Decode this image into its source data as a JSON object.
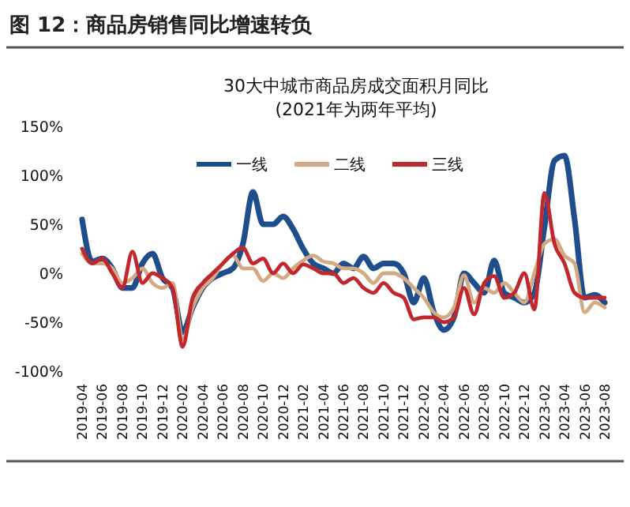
{
  "chart_data": {
    "type": "line",
    "title": "图 12：商品房销售同比增速转负",
    "subtitle": "30大中城市商品房成交面积月同比\n(2021年为两年平均)",
    "categories": [
      "2019-04",
      null,
      "2019-06",
      null,
      "2019-08",
      null,
      "2019-10",
      null,
      "2019-12",
      null,
      "2020-02",
      null,
      "2020-04",
      null,
      "2020-06",
      null,
      "2020-08",
      null,
      "2020-10",
      null,
      "2020-12",
      null,
      "2021-02",
      null,
      "2021-04",
      null,
      "2021-06",
      null,
      "2021-08",
      null,
      "2021-10",
      null,
      "2021-12",
      null,
      "2022-02",
      null,
      "2022-04",
      null,
      "2022-06",
      null,
      "2022-08",
      null,
      "2022-10",
      null,
      "2022-12",
      null,
      "2023-02",
      null,
      "2023-04",
      null,
      "2023-06",
      null,
      "2023-08"
    ],
    "series": [
      {
        "name": "一线",
        "color": "#1f4e8c",
        "values": [
          55,
          12,
          15,
          5,
          -15,
          -15,
          10,
          20,
          -5,
          -15,
          -60,
          -35,
          -15,
          -5,
          0,
          5,
          30,
          83,
          50,
          50,
          58,
          45,
          25,
          10,
          5,
          0,
          10,
          5,
          17,
          5,
          10,
          10,
          0,
          -30,
          -5,
          -40,
          -58,
          -45,
          0,
          -10,
          -20,
          13,
          -20,
          -25,
          -30,
          -20,
          47,
          115,
          120,
          55,
          -25,
          -22,
          -30
        ]
      },
      {
        "name": "二线",
        "color": "#d4aa85",
        "values": [
          20,
          10,
          10,
          5,
          -10,
          -5,
          5,
          -10,
          -15,
          -10,
          -68,
          -35,
          -15,
          -5,
          10,
          18,
          5,
          5,
          -8,
          0,
          -5,
          5,
          13,
          18,
          12,
          10,
          5,
          5,
          0,
          -10,
          0,
          0,
          -5,
          -15,
          -25,
          -40,
          -45,
          -35,
          -2,
          -30,
          -15,
          -20,
          -10,
          -20,
          -30,
          0,
          30,
          35,
          18,
          10,
          -40,
          -30,
          -35
        ]
      },
      {
        "name": "三线",
        "color": "#c0282d",
        "values": [
          25,
          10,
          15,
          0,
          -15,
          22,
          -10,
          0,
          -5,
          -15,
          -75,
          -25,
          -10,
          0,
          10,
          20,
          26,
          10,
          15,
          0,
          10,
          0,
          9,
          5,
          0,
          0,
          -10,
          -5,
          -15,
          -20,
          -10,
          -20,
          -25,
          -47,
          -45,
          -45,
          -50,
          -45,
          -15,
          -42,
          -10,
          -3,
          -25,
          -20,
          0,
          -37,
          82,
          30,
          10,
          -20,
          -25,
          -25,
          -25
        ]
      }
    ],
    "ylim": [
      -100,
      150
    ],
    "yticks": [
      {
        "value": -100,
        "label": "-100%"
      },
      {
        "value": -50,
        "label": "-50%"
      },
      {
        "value": 0,
        "label": "0%"
      },
      {
        "value": 50,
        "label": "50%"
      },
      {
        "value": 100,
        "label": "100%"
      },
      {
        "value": 150,
        "label": "150%"
      }
    ],
    "legend": "top",
    "grid": false,
    "marker": "none",
    "line_style": "solid"
  }
}
